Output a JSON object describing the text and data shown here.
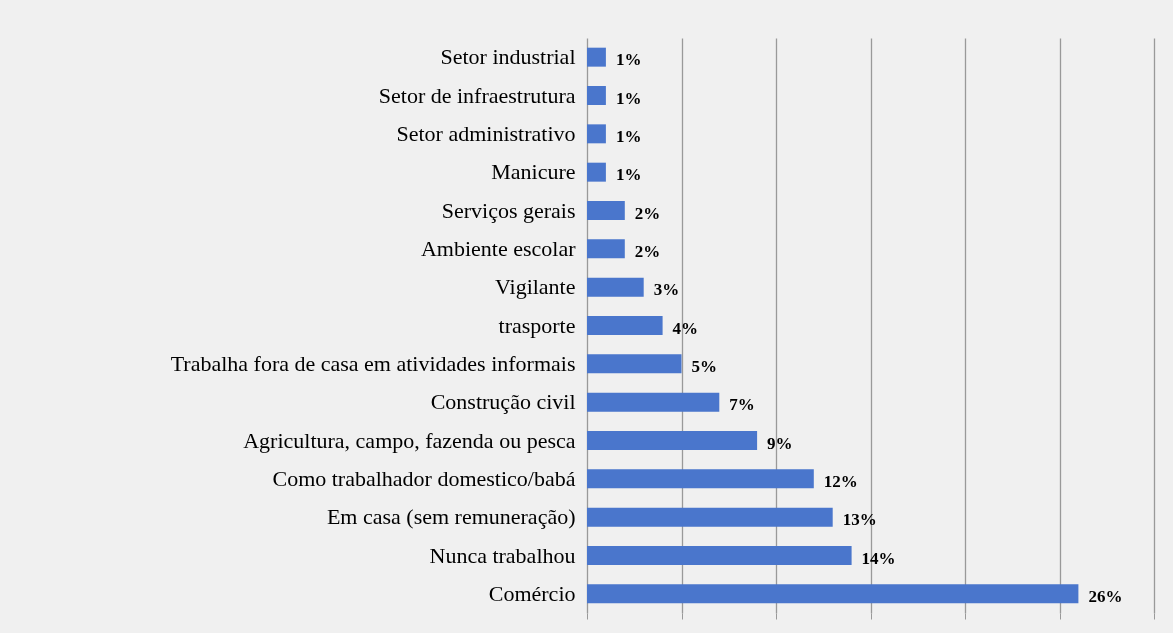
{
  "chart_data": {
    "type": "bar",
    "orientation": "horizontal",
    "categories": [
      "Setor industrial",
      "Setor de infraestrutura",
      "Setor administrativo",
      "Manicure",
      "Serviços gerais",
      "Ambiente escolar",
      "Vigilante",
      "trasporte",
      "Trabalha fora de casa em atividades informais",
      "Construção civil",
      "Agricultura, campo, fazenda ou pesca",
      "Como trabalhador domestico/babá",
      "Em casa (sem remuneração)",
      "Nunca trabalhou",
      "Comércio"
    ],
    "values": [
      1,
      1,
      1,
      1,
      2,
      2,
      3,
      4,
      5,
      7,
      9,
      12,
      13,
      14,
      26
    ],
    "value_labels": [
      "1%",
      "1%",
      "1%",
      "1%",
      "2%",
      "2%",
      "3%",
      "4%",
      "5%",
      "7%",
      "9%",
      "12%",
      "13%",
      "14%",
      "26%"
    ],
    "color": "#4a76cc",
    "xlim": [
      0,
      30
    ],
    "xticks": [
      {
        "value": 0,
        "label": null
      },
      {
        "value": 5,
        "label": null
      },
      {
        "value": 10,
        "label": null
      },
      {
        "value": 15,
        "label": null
      },
      {
        "value": 20,
        "label": null
      },
      {
        "value": 25,
        "label": null
      },
      {
        "value": 30,
        "label": null
      }
    ],
    "grid": "x",
    "tick_labels": "y"
  }
}
